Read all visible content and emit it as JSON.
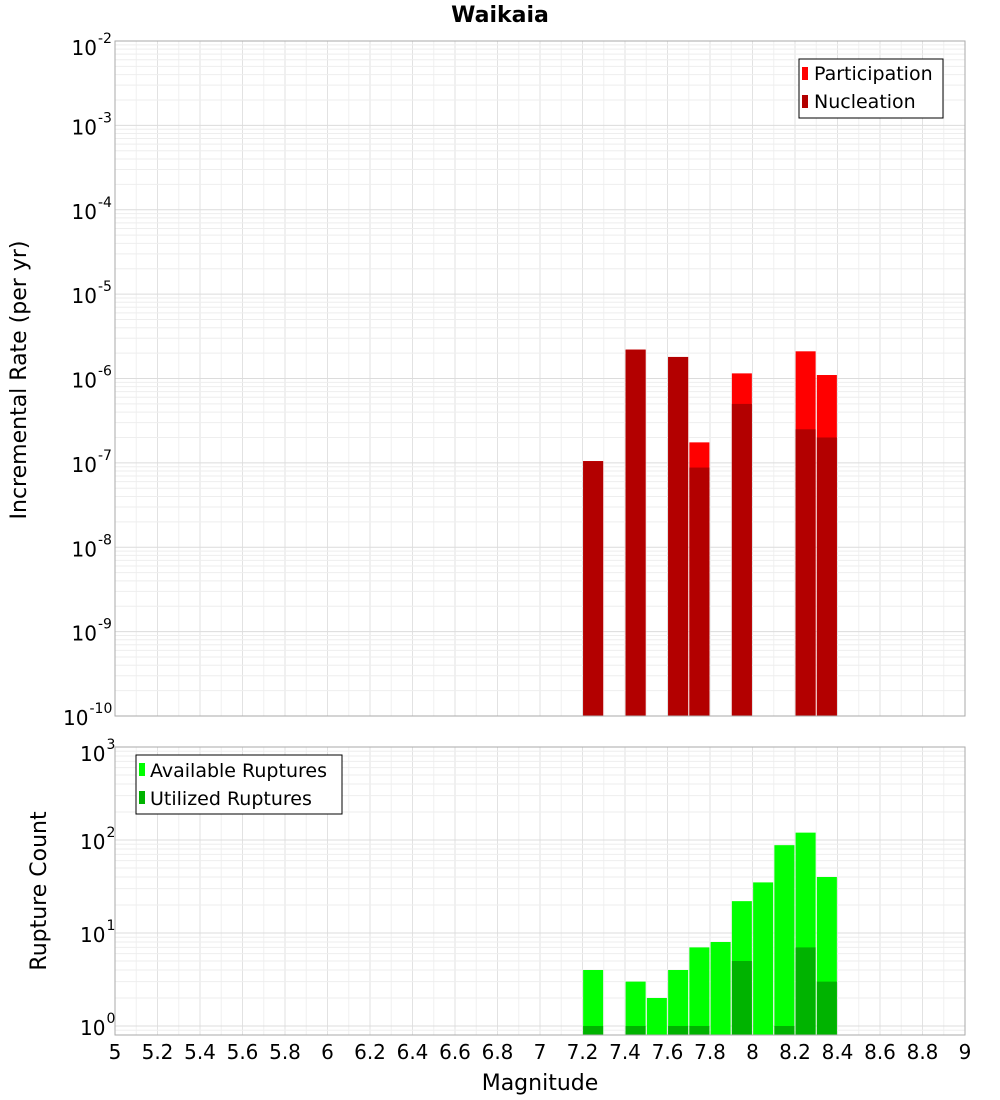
{
  "chart_data": [
    {
      "type": "bar",
      "title": "Waikaia",
      "ylabel": "Incremental Rate (per yr)",
      "xlabel": "Magnitude",
      "yscale": "log",
      "ylim": [
        1e-10,
        0.01
      ],
      "xlim": [
        5,
        9
      ],
      "grid": true,
      "legend_position": "top-right",
      "x": [
        7.25,
        7.45,
        7.65,
        7.75,
        7.95,
        8.25,
        8.35
      ],
      "series": [
        {
          "name": "Participation",
          "color": "#ff0000",
          "values": [
            1.05e-07,
            2.2e-06,
            1.8e-06,
            1.75e-07,
            1.15e-06,
            2.1e-06,
            1.1e-06
          ]
        },
        {
          "name": "Nucleation",
          "color": "#b30000",
          "values": [
            1.05e-07,
            2.2e-06,
            1.8e-06,
            8.8e-08,
            5e-07,
            2.5e-07,
            2e-07
          ]
        }
      ],
      "y_ticks": [
        {
          "base": "10",
          "exp": "-10"
        },
        {
          "base": "10",
          "exp": "-9"
        },
        {
          "base": "10",
          "exp": "-8"
        },
        {
          "base": "10",
          "exp": "-7"
        },
        {
          "base": "10",
          "exp": "-6"
        },
        {
          "base": "10",
          "exp": "-5"
        },
        {
          "base": "10",
          "exp": "-4"
        },
        {
          "base": "10",
          "exp": "-3"
        },
        {
          "base": "10",
          "exp": "-2"
        }
      ]
    },
    {
      "type": "bar",
      "ylabel": "Rupture Count",
      "xlabel": "Magnitude",
      "yscale": "log",
      "ylim": [
        0.8,
        1000
      ],
      "xlim": [
        5,
        9
      ],
      "grid": true,
      "legend_position": "top-left",
      "x": [
        7.25,
        7.45,
        7.55,
        7.65,
        7.75,
        7.85,
        7.95,
        8.05,
        8.15,
        8.25,
        8.35
      ],
      "series": [
        {
          "name": "Available Ruptures",
          "color": "#00ff00",
          "values": [
            4,
            3,
            2,
            4,
            7,
            8,
            22,
            35,
            88,
            120,
            40
          ]
        },
        {
          "name": "Utilized Ruptures",
          "color": "#00b300",
          "values": [
            1,
            1,
            0,
            1,
            1,
            0,
            5,
            0,
            1,
            7,
            3
          ]
        }
      ],
      "y_ticks": [
        {
          "base": "10",
          "exp": "0"
        },
        {
          "base": "10",
          "exp": "1"
        },
        {
          "base": "10",
          "exp": "2"
        },
        {
          "base": "10",
          "exp": "3"
        }
      ],
      "x_ticks": [
        "5",
        "5.2",
        "5.4",
        "5.6",
        "5.8",
        "6",
        "6.2",
        "6.4",
        "6.6",
        "6.8",
        "7",
        "7.2",
        "7.4",
        "7.6",
        "7.8",
        "8",
        "8.2",
        "8.4",
        "8.6",
        "8.8",
        "9"
      ]
    }
  ]
}
